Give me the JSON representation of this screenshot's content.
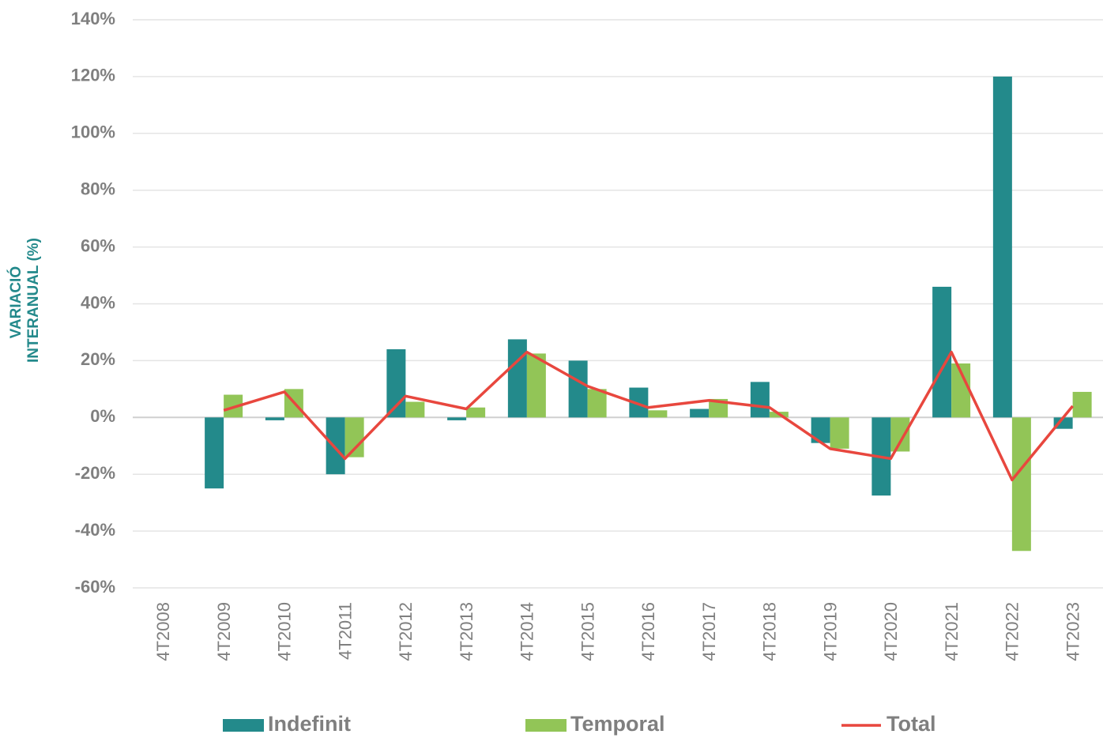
{
  "chart_data": {
    "type": "bar",
    "y_label": [
      "VARIACIÓ",
      "INTERANUAL (%)"
    ],
    "categories": [
      "4T2008",
      "4T2009",
      "4T2010",
      "4T2011",
      "4T2012",
      "4T2013",
      "4T2014",
      "4T2015",
      "4T2016",
      "4T2017",
      "4T2018",
      "4T2019",
      "4T2020",
      "4T2021",
      "4T2022",
      "4T2023"
    ],
    "series": [
      {
        "name": "Indefinit",
        "type": "bar",
        "color": "#238a8b",
        "values": [
          null,
          -25,
          -1,
          -20,
          24,
          -1,
          27.5,
          20,
          10.5,
          3,
          12.5,
          -9,
          -27.5,
          46,
          120,
          -4
        ]
      },
      {
        "name": "Temporal",
        "type": "bar",
        "color": "#92c557",
        "values": [
          null,
          8,
          10,
          -14,
          5.5,
          3.5,
          22.5,
          10,
          2.5,
          6.5,
          2,
          -11,
          -12,
          19,
          -47,
          9
        ]
      },
      {
        "name": "Total",
        "type": "line",
        "color": "#e8473e",
        "values": [
          null,
          2.5,
          9,
          -14.5,
          7.5,
          3,
          23,
          11,
          3.5,
          6,
          3.5,
          -11,
          -14.5,
          23,
          -22,
          4
        ]
      }
    ],
    "ylim": [
      -60,
      140
    ],
    "yticks": [
      {
        "value": -60,
        "label": "-60%"
      },
      {
        "value": -40,
        "label": "-40%"
      },
      {
        "value": -20,
        "label": "-20%"
      },
      {
        "value": 0,
        "label": "0%"
      },
      {
        "value": 20,
        "label": "20%"
      },
      {
        "value": 40,
        "label": "40%"
      },
      {
        "value": 60,
        "label": "60%"
      },
      {
        "value": 80,
        "label": "80%"
      },
      {
        "value": 100,
        "label": "100%"
      },
      {
        "value": 120,
        "label": "120%"
      },
      {
        "value": 140,
        "label": "140%"
      }
    ],
    "grid": true,
    "legend": "bottom"
  }
}
